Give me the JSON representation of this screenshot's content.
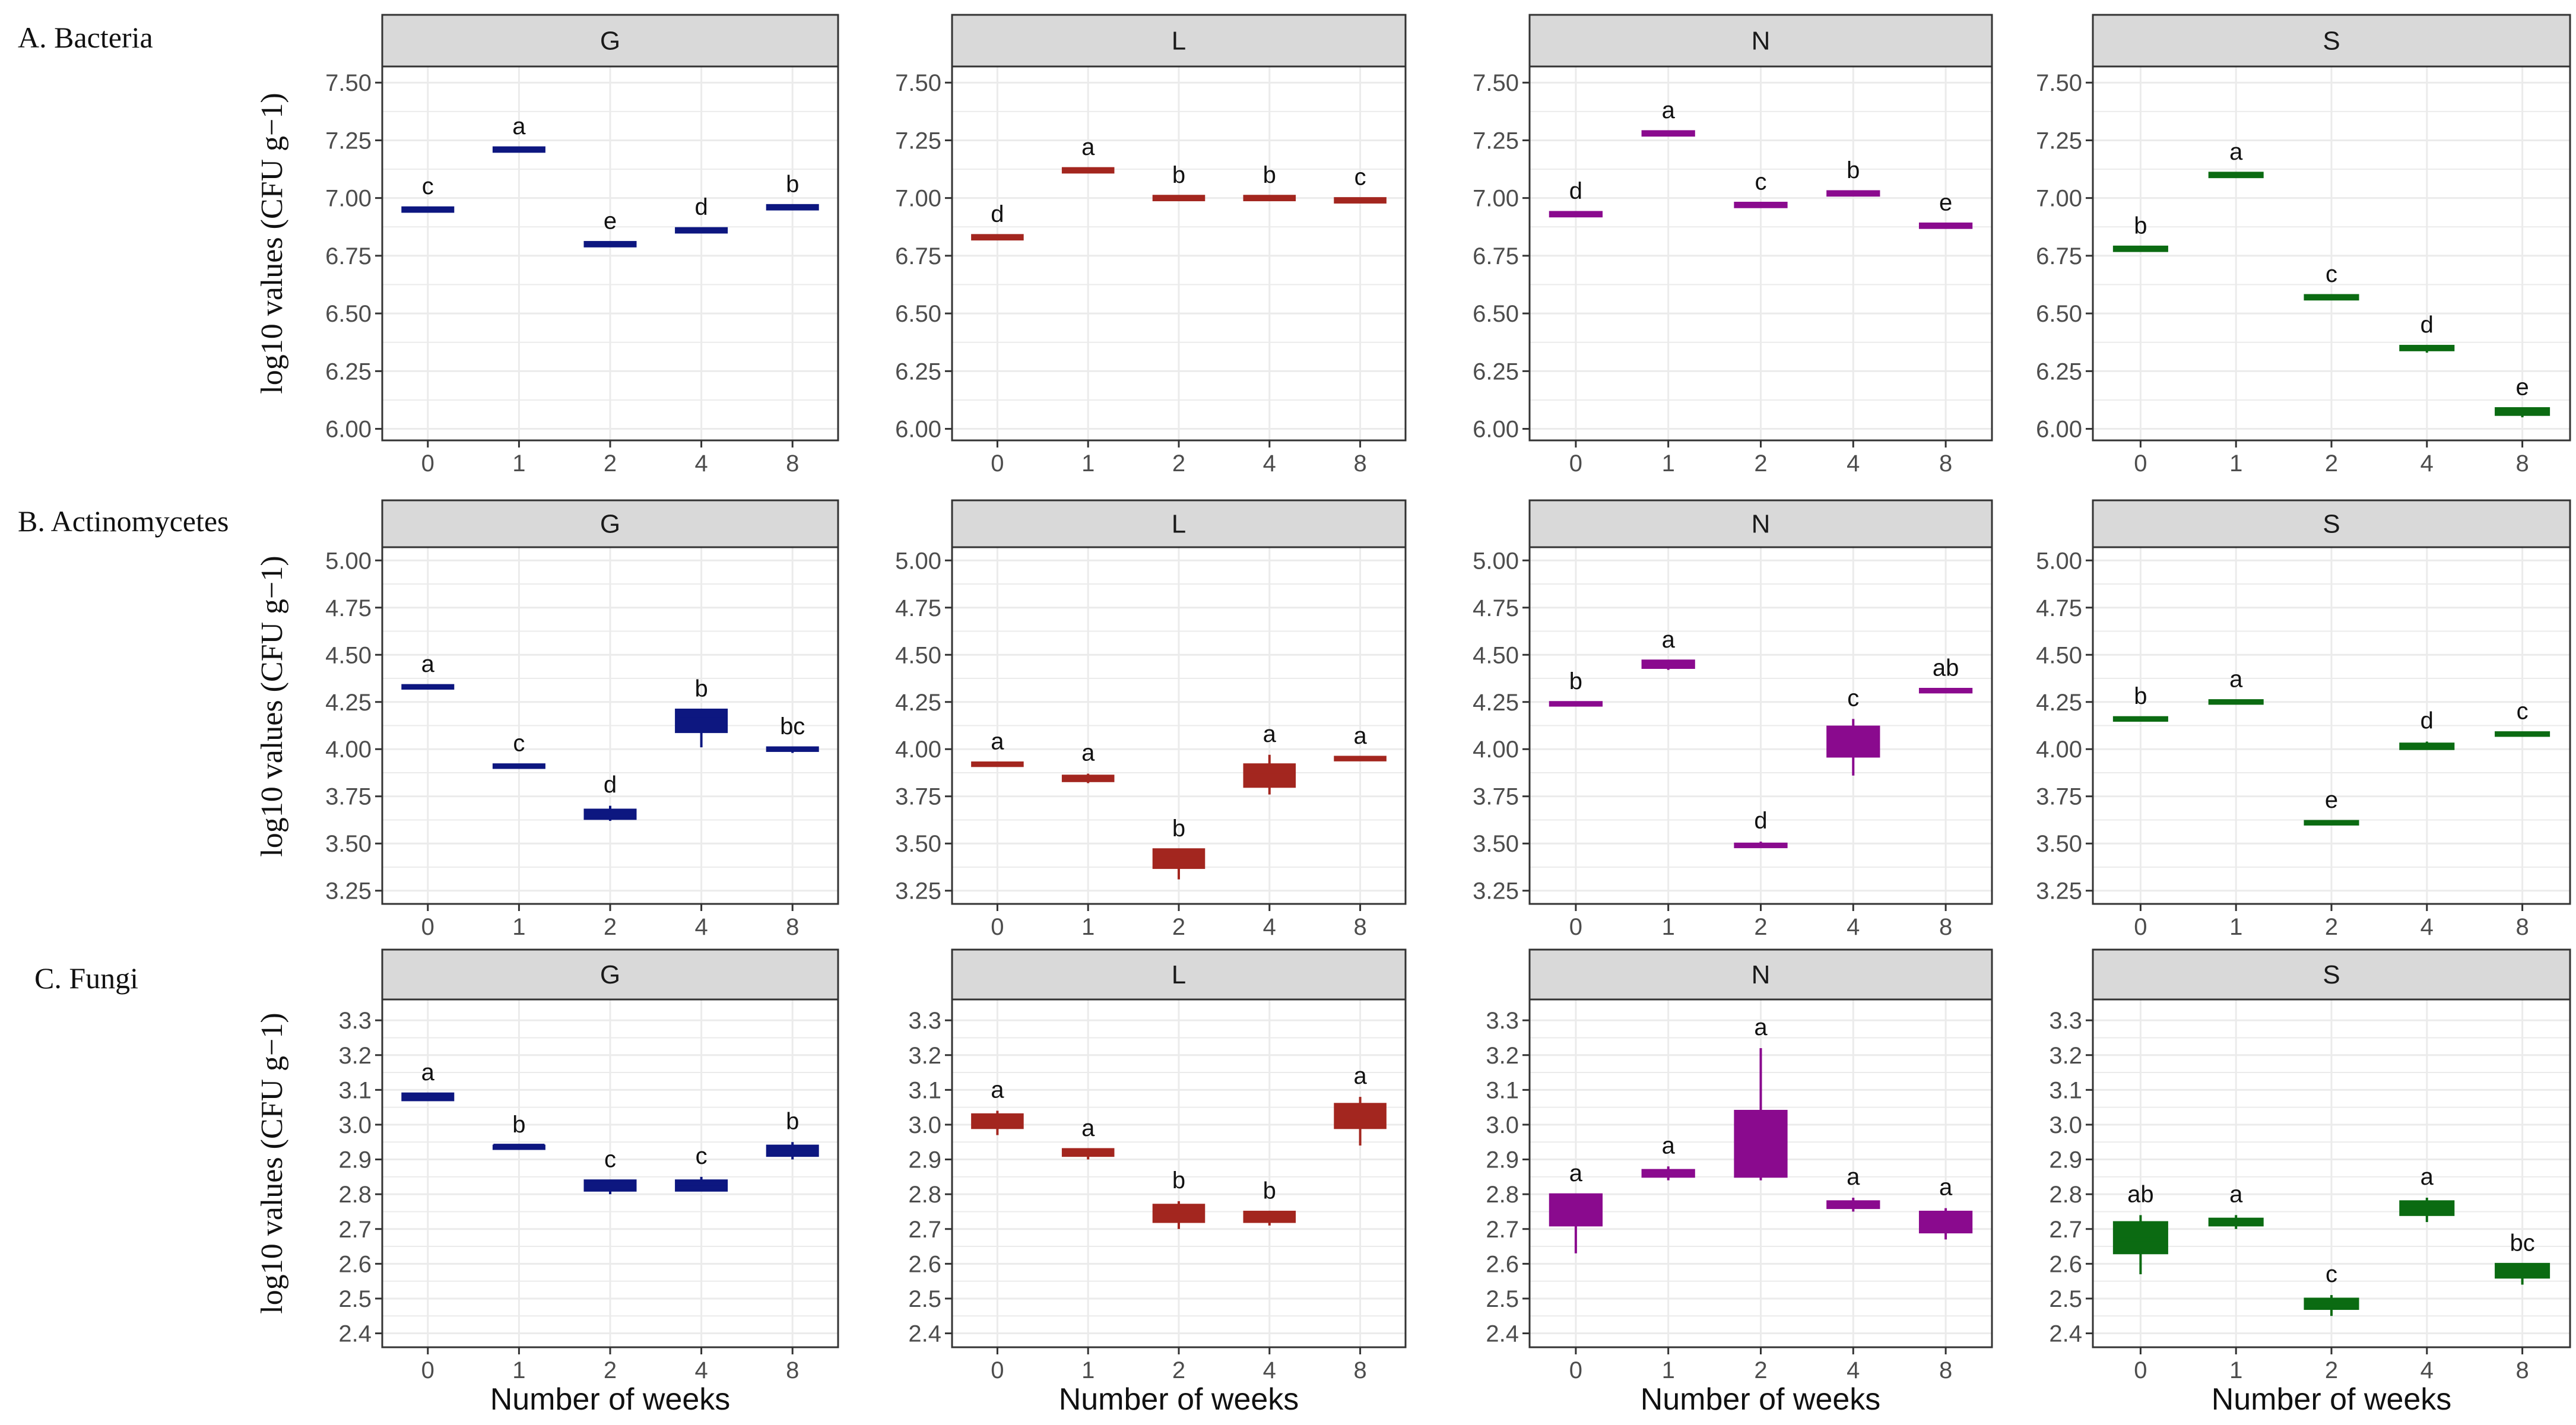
{
  "labels": {
    "row_a": "A. Bacteria",
    "row_b": "B. Actinomycetes",
    "row_c": "C. Fungi",
    "y_axis": "log10 values (CFU g−1)",
    "x_axis": "Number of weeks"
  },
  "colors": {
    "G": "#0d1780",
    "L": "#a3261f",
    "N": "#8a0a8e",
    "S": "#0b6b12",
    "strip_fill": "#d9d9d9",
    "grid": "#ebebeb",
    "panel_border": "#333333"
  },
  "chart_data": [
    {
      "type": "box",
      "title": "A. Bacteria",
      "xlabel": "",
      "ylabel": "log10 values (CFU g−1)",
      "categories": [
        "0",
        "1",
        "2",
        "4",
        "8"
      ],
      "ylim": [
        5.95,
        7.57
      ],
      "yticks": [
        "6.00",
        "6.25",
        "6.50",
        "6.75",
        "7.00",
        "7.25",
        "7.50"
      ],
      "panels": [
        {
          "facet": "G",
          "values": [
            6.95,
            7.21,
            6.8,
            6.86,
            6.96
          ],
          "q1": [
            6.94,
            7.2,
            6.79,
            6.85,
            6.95
          ],
          "q3": [
            6.96,
            7.22,
            6.81,
            6.87,
            6.97
          ],
          "wlo": [
            6.94,
            7.2,
            6.79,
            6.85,
            6.95
          ],
          "whi": [
            6.96,
            7.22,
            6.81,
            6.87,
            6.97
          ],
          "sig": [
            "c",
            "a",
            "e",
            "d",
            "b"
          ]
        },
        {
          "facet": "L",
          "values": [
            6.83,
            7.12,
            7.0,
            7.0,
            6.99
          ],
          "q1": [
            6.82,
            7.11,
            6.99,
            6.99,
            6.98
          ],
          "q3": [
            6.84,
            7.13,
            7.01,
            7.01,
            7.0
          ],
          "wlo": [
            6.82,
            7.11,
            6.99,
            6.99,
            6.98
          ],
          "whi": [
            6.84,
            7.13,
            7.01,
            7.01,
            7.0
          ],
          "sig": [
            "d",
            "a",
            "b",
            "b",
            "c"
          ]
        },
        {
          "facet": "N",
          "values": [
            6.93,
            7.28,
            6.97,
            7.02,
            6.88
          ],
          "q1": [
            6.92,
            7.27,
            6.96,
            7.01,
            6.87
          ],
          "q3": [
            6.94,
            7.29,
            6.98,
            7.03,
            6.89
          ],
          "wlo": [
            6.92,
            7.27,
            6.96,
            7.01,
            6.87
          ],
          "whi": [
            6.94,
            7.29,
            6.98,
            7.03,
            6.89
          ],
          "sig": [
            "d",
            "a",
            "c",
            "b",
            "e"
          ]
        },
        {
          "facet": "S",
          "values": [
            6.78,
            7.1,
            6.57,
            6.35,
            6.07
          ],
          "q1": [
            6.77,
            7.09,
            6.56,
            6.34,
            6.06
          ],
          "q3": [
            6.79,
            7.11,
            6.58,
            6.36,
            6.09
          ],
          "wlo": [
            6.77,
            7.09,
            6.56,
            6.33,
            6.05
          ],
          "whi": [
            6.79,
            7.11,
            6.58,
            6.36,
            6.09
          ],
          "sig": [
            "b",
            "a",
            "c",
            "d",
            "e"
          ]
        }
      ]
    },
    {
      "type": "box",
      "title": "B. Actinomycetes",
      "xlabel": "",
      "ylabel": "log10 values (CFU g−1)",
      "categories": [
        "0",
        "1",
        "2",
        "4",
        "8"
      ],
      "ylim": [
        3.18,
        5.07
      ],
      "yticks": [
        "3.25",
        "3.50",
        "3.75",
        "4.00",
        "4.25",
        "4.50",
        "4.75",
        "5.00"
      ],
      "panels": [
        {
          "facet": "G",
          "values": [
            4.33,
            3.91,
            3.65,
            4.16,
            4.0
          ],
          "q1": [
            4.32,
            3.9,
            3.63,
            4.09,
            3.99
          ],
          "q3": [
            4.34,
            3.92,
            3.68,
            4.21,
            4.01
          ],
          "wlo": [
            4.32,
            3.9,
            3.62,
            4.01,
            3.98
          ],
          "whi": [
            4.34,
            3.92,
            3.7,
            4.21,
            4.01
          ],
          "sig": [
            "a",
            "c",
            "d",
            "b",
            "bc"
          ]
        },
        {
          "facet": "L",
          "values": [
            3.92,
            3.85,
            3.42,
            3.86,
            3.95
          ],
          "q1": [
            3.91,
            3.83,
            3.37,
            3.8,
            3.94
          ],
          "q3": [
            3.93,
            3.86,
            3.47,
            3.92,
            3.96
          ],
          "wlo": [
            3.91,
            3.82,
            3.31,
            3.76,
            3.94
          ],
          "whi": [
            3.93,
            3.87,
            3.47,
            3.97,
            3.96
          ],
          "sig": [
            "a",
            "a",
            "b",
            "a",
            "a"
          ]
        },
        {
          "facet": "N",
          "values": [
            4.24,
            4.45,
            3.49,
            4.05,
            4.31
          ],
          "q1": [
            4.23,
            4.43,
            3.48,
            3.96,
            4.3
          ],
          "q3": [
            4.25,
            4.47,
            3.5,
            4.12,
            4.32
          ],
          "wlo": [
            4.23,
            4.42,
            3.48,
            3.86,
            4.3
          ],
          "whi": [
            4.25,
            4.47,
            3.51,
            4.16,
            4.32
          ],
          "sig": [
            "b",
            "a",
            "d",
            "c",
            "ab"
          ]
        },
        {
          "facet": "S",
          "values": [
            4.16,
            4.25,
            3.61,
            4.02,
            4.08
          ],
          "q1": [
            4.15,
            4.24,
            3.6,
            4.0,
            4.07
          ],
          "q3": [
            4.17,
            4.26,
            3.62,
            4.03,
            4.09
          ],
          "wlo": [
            4.15,
            4.24,
            3.6,
            4.0,
            4.07
          ],
          "whi": [
            4.17,
            4.26,
            3.62,
            4.04,
            4.09
          ],
          "sig": [
            "b",
            "a",
            "e",
            "d",
            "c"
          ]
        }
      ]
    },
    {
      "type": "box",
      "title": "C. Fungi",
      "xlabel": "Number of weeks",
      "ylabel": "log10 values (CFU g−1)",
      "categories": [
        "0",
        "1",
        "2",
        "4",
        "8"
      ],
      "ylim": [
        2.36,
        3.36
      ],
      "yticks": [
        "2.4",
        "2.5",
        "2.6",
        "2.7",
        "2.8",
        "2.9",
        "3.0",
        "3.1",
        "3.2",
        "3.3"
      ],
      "panels": [
        {
          "facet": "G",
          "values": [
            3.08,
            2.94,
            2.82,
            2.83,
            2.92
          ],
          "q1": [
            3.07,
            2.93,
            2.81,
            2.81,
            2.91
          ],
          "q3": [
            3.09,
            2.94,
            2.84,
            2.84,
            2.94
          ],
          "wlo": [
            3.07,
            2.93,
            2.8,
            2.81,
            2.9
          ],
          "whi": [
            3.09,
            2.94,
            2.84,
            2.85,
            2.95
          ],
          "sig": [
            "a",
            "b",
            "c",
            "c",
            "b"
          ]
        },
        {
          "facet": "L",
          "values": [
            3.01,
            2.92,
            2.74,
            2.73,
            3.02
          ],
          "q1": [
            2.99,
            2.91,
            2.72,
            2.72,
            2.99
          ],
          "q3": [
            3.03,
            2.93,
            2.77,
            2.75,
            3.06
          ],
          "wlo": [
            2.97,
            2.9,
            2.7,
            2.71,
            2.94
          ],
          "whi": [
            3.04,
            2.93,
            2.78,
            2.75,
            3.08
          ],
          "sig": [
            "a",
            "a",
            "b",
            "b",
            "a"
          ]
        },
        {
          "facet": "N",
          "values": [
            2.75,
            2.86,
            2.94,
            2.77,
            2.72
          ],
          "q1": [
            2.71,
            2.85,
            2.85,
            2.76,
            2.69
          ],
          "q3": [
            2.8,
            2.87,
            3.04,
            2.78,
            2.75
          ],
          "wlo": [
            2.63,
            2.84,
            2.84,
            2.75,
            2.67
          ],
          "whi": [
            2.8,
            2.88,
            3.22,
            2.79,
            2.76
          ],
          "sig": [
            "a",
            "a",
            "a",
            "a",
            "a"
          ]
        },
        {
          "facet": "S",
          "values": [
            2.67,
            2.72,
            2.48,
            2.76,
            2.58
          ],
          "q1": [
            2.63,
            2.71,
            2.47,
            2.74,
            2.56
          ],
          "q3": [
            2.72,
            2.73,
            2.5,
            2.78,
            2.6
          ],
          "wlo": [
            2.57,
            2.7,
            2.45,
            2.72,
            2.54
          ],
          "whi": [
            2.74,
            2.74,
            2.51,
            2.79,
            2.6
          ],
          "sig": [
            "ab",
            "a",
            "c",
            "a",
            "bc"
          ]
        }
      ]
    }
  ]
}
